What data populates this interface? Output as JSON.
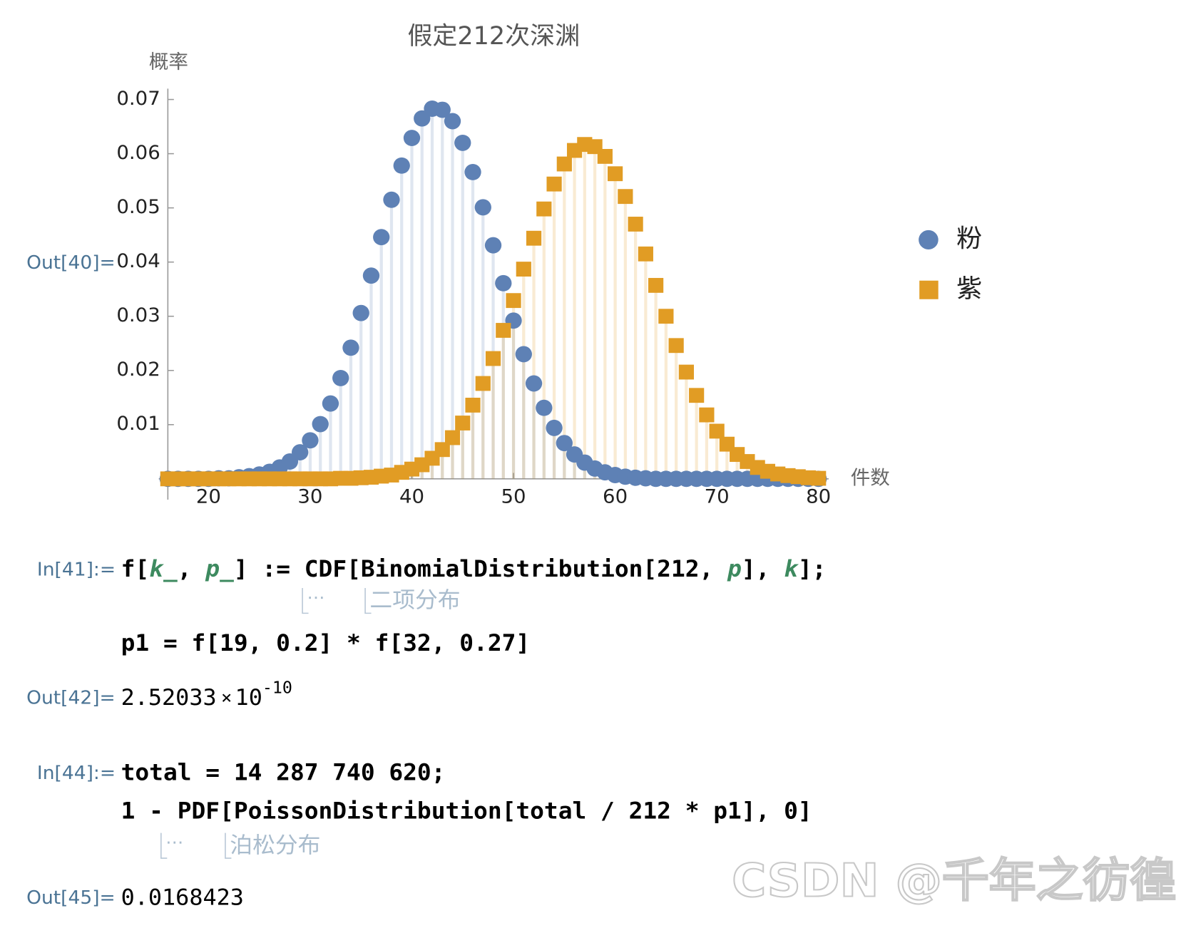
{
  "chart_data": {
    "type": "discrete",
    "title": "假定212次深渊",
    "x_label": "件数",
    "y_label": "概率",
    "x": [
      16,
      17,
      18,
      19,
      20,
      21,
      22,
      23,
      24,
      25,
      26,
      27,
      28,
      29,
      30,
      31,
      32,
      33,
      34,
      35,
      36,
      37,
      38,
      39,
      40,
      41,
      42,
      43,
      44,
      45,
      46,
      47,
      48,
      49,
      50,
      51,
      52,
      53,
      54,
      55,
      56,
      57,
      58,
      59,
      60,
      61,
      62,
      63,
      64,
      65,
      66,
      67,
      68,
      69,
      70,
      71,
      72,
      73,
      74,
      75,
      76,
      77,
      78,
      79,
      80
    ],
    "series": [
      {
        "name": "粉",
        "color": "#5e81b5",
        "marker": "circle",
        "values": [
          0,
          0,
          0,
          0,
          0,
          0.0001,
          0.0001,
          0.0003,
          0.0005,
          0.0008,
          0.0013,
          0.0021,
          0.0032,
          0.0049,
          0.0071,
          0.0101,
          0.0139,
          0.0186,
          0.0242,
          0.0306,
          0.0375,
          0.0446,
          0.0515,
          0.0578,
          0.0629,
          0.0665,
          0.0683,
          0.0681,
          0.066,
          0.062,
          0.0566,
          0.0501,
          0.0431,
          0.0361,
          0.0292,
          0.023,
          0.0176,
          0.0131,
          0.0094,
          0.0066,
          0.0045,
          0.003,
          0.0019,
          0.0012,
          0.0007,
          0.0004,
          0.0002,
          0.0001,
          0,
          0,
          0,
          0,
          0,
          0,
          0,
          0,
          0,
          0,
          0,
          0,
          0,
          0,
          0,
          0,
          0
        ]
      },
      {
        "name": "紫",
        "color": "#e19c24",
        "marker": "square",
        "values": [
          0,
          0,
          0,
          0,
          0,
          0,
          0,
          0,
          0,
          0,
          0,
          0,
          0,
          0,
          0,
          0,
          0,
          0.0001,
          0.0001,
          0.0002,
          0.0003,
          0.0005,
          0.0007,
          0.0012,
          0.0018,
          0.0026,
          0.0038,
          0.0054,
          0.0076,
          0.0103,
          0.0136,
          0.0176,
          0.0222,
          0.0274,
          0.0329,
          0.0387,
          0.0444,
          0.0498,
          0.0544,
          0.0581,
          0.0606,
          0.0617,
          0.0613,
          0.0595,
          0.0563,
          0.0521,
          0.047,
          0.0415,
          0.0357,
          0.03,
          0.0246,
          0.0197,
          0.0154,
          0.0118,
          0.0088,
          0.0064,
          0.0045,
          0.0032,
          0.0021,
          0.0014,
          0.0009,
          0.0006,
          0.0004,
          0.0002,
          0.0001
        ]
      }
    ],
    "xlim": [
      16,
      81
    ],
    "ylim": [
      0,
      0.072
    ],
    "xticks": [
      20,
      30,
      40,
      50,
      60,
      70,
      80
    ],
    "yticks": [
      0.01,
      0.02,
      0.03,
      0.04,
      0.05,
      0.06,
      0.07
    ],
    "filling": "axis",
    "legend": "right"
  },
  "notebook": {
    "out40": {
      "label": "Out[40]="
    },
    "in41": {
      "label": "In[41]:=",
      "lines": [
        [
          "f[",
          {
            "text": "k_",
            "color": "#3d8a5f",
            "italic": true
          },
          ", ",
          {
            "text": "p_",
            "color": "#3d8a5f",
            "italic": true
          },
          "] := CDF[BinomialDistribution[212, ",
          {
            "text": "p",
            "color": "#3d8a5f",
            "italic": true
          },
          "], ",
          {
            "text": "k",
            "color": "#3d8a5f",
            "italic": true
          },
          "];"
        ],
        [
          "p1 = f[19, 0.2] * f[32, 0.27]"
        ]
      ],
      "hint": [
        "⋯",
        "二项分布"
      ]
    },
    "out42": {
      "label": "Out[42]=",
      "mantissa": "2.52033",
      "times": "×",
      "base": "10",
      "exponent": "-10"
    },
    "in44": {
      "label": "In[44]:=",
      "lines": [
        [
          "total = 14 287 740 620;"
        ],
        [
          "1 - PDF[PoissonDistribution[total / 212 * p1], 0]"
        ]
      ],
      "hint": [
        "⋯",
        "泊松分布"
      ]
    },
    "out45": {
      "label": "Out[45]=",
      "value": "0.0168423"
    },
    "watermark": "CSDN @千年之彷徨"
  }
}
